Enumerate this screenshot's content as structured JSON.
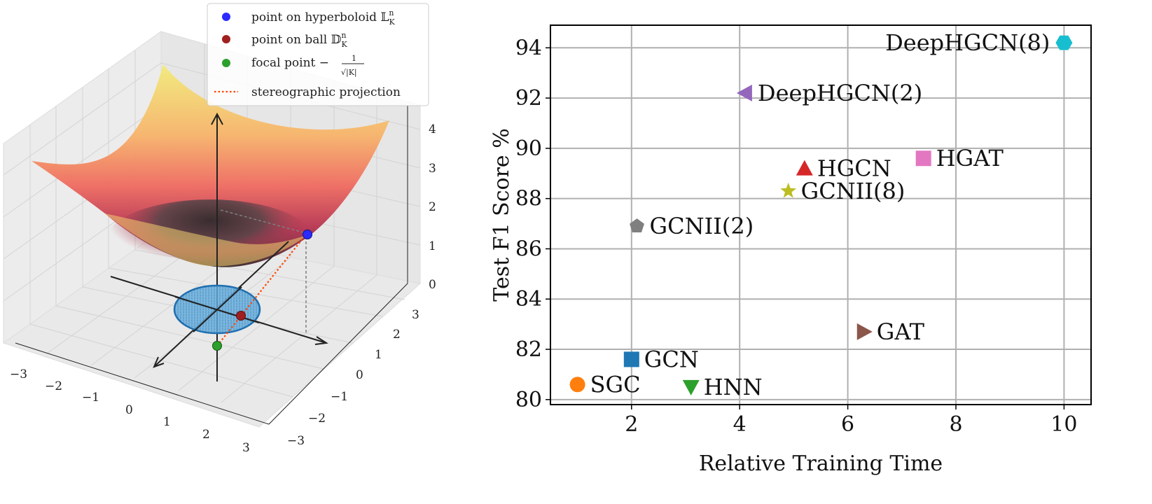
{
  "chart_data": [
    {
      "type": "surface3d",
      "title": "",
      "legend": {
        "placement": "top-right",
        "entries": [
          {
            "label": "point on hyperboloid 𝕃",
            "sup": "n",
            "sub": "K",
            "color": "#2b2bff",
            "marker": "circle"
          },
          {
            "label": "point on ball 𝔻",
            "sup": "n",
            "sub": "K",
            "color": "#a02020",
            "marker": "circle"
          },
          {
            "label": "focal point −",
            "frac_num": "1",
            "frac_den": "√|K|",
            "color": "#2ca02c",
            "marker": "circle"
          },
          {
            "label": "stereographic projection",
            "color": "#ff4500",
            "marker": "dotted-line"
          }
        ]
      },
      "x_ticks": [
        "−3",
        "−2",
        "−1",
        "0",
        "1",
        "2",
        "3"
      ],
      "y_ticks": [
        "−3",
        "−2",
        "−1",
        "0",
        "1",
        "2",
        "3"
      ],
      "z_ticks": [
        "0",
        "1",
        "2",
        "3",
        "4"
      ],
      "xlim": [
        -3,
        3
      ],
      "ylim": [
        -3,
        3
      ],
      "zlim": [
        0,
        4
      ],
      "points": {
        "hyperboloid": [
          2.2,
          0.0,
          1.5
        ],
        "ball": [
          0.6,
          0.0,
          0.0
        ],
        "focal": [
          0.0,
          0.0,
          -1.0
        ]
      }
    },
    {
      "type": "scatter",
      "xlabel": "Relative Training Time",
      "ylabel": "Test F1 Score %",
      "xlim": [
        0.5,
        10.5
      ],
      "ylim": [
        79.8,
        94.9
      ],
      "x_ticks": [
        2,
        4,
        6,
        8,
        10
      ],
      "y_ticks": [
        80,
        82,
        84,
        86,
        88,
        90,
        92,
        94
      ],
      "grid": true,
      "points": [
        {
          "name": "DeepHGCN(8)",
          "x": 10.0,
          "y": 94.2,
          "marker": "hexagon",
          "color": "#17becf",
          "label_side": "left"
        },
        {
          "name": "DeepHGCN(2)",
          "x": 4.1,
          "y": 92.2,
          "marker": "triangle-left",
          "color": "#9467bd",
          "label_side": "right"
        },
        {
          "name": "HGAT",
          "x": 7.4,
          "y": 89.6,
          "marker": "square",
          "color": "#e377c2",
          "label_side": "right"
        },
        {
          "name": "HGCN",
          "x": 5.2,
          "y": 89.2,
          "marker": "triangle-up",
          "color": "#d62728",
          "label_side": "right"
        },
        {
          "name": "GCNII(8)",
          "x": 4.9,
          "y": 88.3,
          "marker": "star",
          "color": "#bcbd22",
          "label_side": "right"
        },
        {
          "name": "GCNII(2)",
          "x": 2.1,
          "y": 86.9,
          "marker": "pentagon",
          "color": "#7f7f7f",
          "label_side": "right"
        },
        {
          "name": "GAT",
          "x": 6.3,
          "y": 82.7,
          "marker": "triangle-right",
          "color": "#8c564b",
          "label_side": "right"
        },
        {
          "name": "GCN",
          "x": 2.0,
          "y": 81.6,
          "marker": "square",
          "color": "#1f77b4",
          "label_side": "right"
        },
        {
          "name": "SGC",
          "x": 1.0,
          "y": 80.6,
          "marker": "circle",
          "color": "#ff7f0e",
          "label_side": "right"
        },
        {
          "name": "HNN",
          "x": 3.1,
          "y": 80.5,
          "marker": "triangle-down",
          "color": "#2ca02c",
          "label_side": "right"
        }
      ]
    }
  ]
}
